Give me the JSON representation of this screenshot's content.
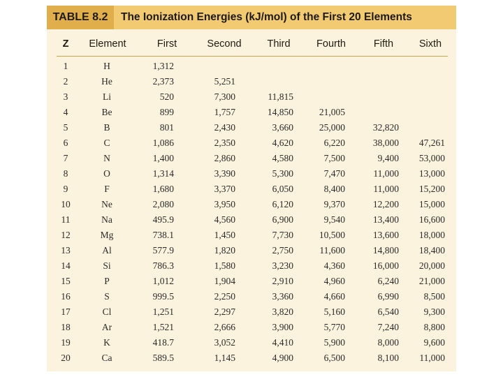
{
  "table": {
    "tag": "TABLE 8.2",
    "title": "The Ionization Energies (kJ/mol) of the First 20 Elements",
    "headers": [
      "Z",
      "Element",
      "First",
      "Second",
      "Third",
      "Fourth",
      "Fifth",
      "Sixth"
    ],
    "rows": [
      [
        "1",
        "H",
        "1,312",
        "",
        "",
        "",
        "",
        ""
      ],
      [
        "2",
        "He",
        "2,373",
        "5,251",
        "",
        "",
        "",
        ""
      ],
      [
        "3",
        "Li",
        "520",
        "7,300",
        "11,815",
        "",
        "",
        ""
      ],
      [
        "4",
        "Be",
        "899",
        "1,757",
        "14,850",
        "21,005",
        "",
        ""
      ],
      [
        "5",
        "B",
        "801",
        "2,430",
        "3,660",
        "25,000",
        "32,820",
        ""
      ],
      [
        "6",
        "C",
        "1,086",
        "2,350",
        "4,620",
        "6,220",
        "38,000",
        "47,261"
      ],
      [
        "7",
        "N",
        "1,400",
        "2,860",
        "4,580",
        "7,500",
        "9,400",
        "53,000"
      ],
      [
        "8",
        "O",
        "1,314",
        "3,390",
        "5,300",
        "7,470",
        "11,000",
        "13,000"
      ],
      [
        "9",
        "F",
        "1,680",
        "3,370",
        "6,050",
        "8,400",
        "11,000",
        "15,200"
      ],
      [
        "10",
        "Ne",
        "2,080",
        "3,950",
        "6,120",
        "9,370",
        "12,200",
        "15,000"
      ],
      [
        "11",
        "Na",
        "495.9",
        "4,560",
        "6,900",
        "9,540",
        "13,400",
        "16,600"
      ],
      [
        "12",
        "Mg",
        "738.1",
        "1,450",
        "7,730",
        "10,500",
        "13,600",
        "18,000"
      ],
      [
        "13",
        "Al",
        "577.9",
        "1,820",
        "2,750",
        "11,600",
        "14,800",
        "18,400"
      ],
      [
        "14",
        "Si",
        "786.3",
        "1,580",
        "3,230",
        "4,360",
        "16,000",
        "20,000"
      ],
      [
        "15",
        "P",
        "1,012",
        "1,904",
        "2,910",
        "4,960",
        "6,240",
        "21,000"
      ],
      [
        "16",
        "S",
        "999.5",
        "2,250",
        "3,360",
        "4,660",
        "6,990",
        "8,500"
      ],
      [
        "17",
        "Cl",
        "1,251",
        "2,297",
        "3,820",
        "5,160",
        "6,540",
        "9,300"
      ],
      [
        "18",
        "Ar",
        "1,521",
        "2,666",
        "3,900",
        "5,770",
        "7,240",
        "8,800"
      ],
      [
        "19",
        "K",
        "418.7",
        "3,052",
        "4,410",
        "5,900",
        "8,000",
        "9,600"
      ],
      [
        "20",
        "Ca",
        "589.5",
        "1,145",
        "4,900",
        "6,500",
        "8,100",
        "11,000"
      ]
    ]
  },
  "colors": {
    "panel": "#fbf3dd",
    "header": "#f1ca72",
    "tag": "#e1ae4c",
    "text": "#1e1a12"
  }
}
